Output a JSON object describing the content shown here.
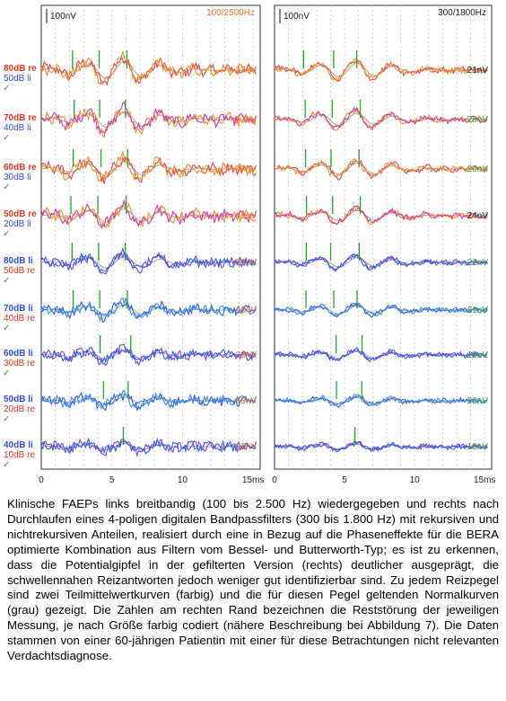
{
  "panels": [
    {
      "id": "left",
      "scale_label": "100nV",
      "filter_label": "100/2500Hz",
      "filter_color": "#e8722b",
      "x_ticks": [
        "0",
        "5",
        "10",
        "15ms"
      ],
      "rows": [
        {
          "re_label": "80dB re",
          "li_label": "50dB li",
          "stim": "re",
          "noise": "37nV",
          "noise_color": "#e8722b"
        },
        {
          "re_label": "70dB re",
          "li_label": "40dB li",
          "stim": "re",
          "noise": "57nV",
          "noise_color": "#e8722b"
        },
        {
          "re_label": "60dB re",
          "li_label": "30dB li",
          "stim": "re",
          "noise": "47nV",
          "noise_color": "#e8722b"
        },
        {
          "re_label": "50dB re",
          "li_label": "20dB li",
          "stim": "re",
          "noise": "41nV",
          "noise_color": "#e8722b"
        },
        {
          "re_label": "50dB re",
          "li_label": "80dB li",
          "stim": "li",
          "noise": "52nV",
          "noise_color": "#e8722b"
        },
        {
          "re_label": "40dB re",
          "li_label": "70dB li",
          "stim": "li",
          "noise": "43nV",
          "noise_color": "#e8722b"
        },
        {
          "re_label": "30dB re",
          "li_label": "60dB li",
          "stim": "li",
          "noise": "29nV",
          "noise_color": "#e8722b"
        },
        {
          "re_label": "20dB re",
          "li_label": "50dB li",
          "stim": "li",
          "noise": "43nV",
          "noise_color": "#e8722b"
        },
        {
          "re_label": "10dB re",
          "li_label": "40dB li",
          "stim": "li",
          "noise": "32nV",
          "noise_color": "#e8722b"
        }
      ]
    },
    {
      "id": "right",
      "scale_label": "100nV",
      "filter_label": "300/1800Hz",
      "filter_color": "#222222",
      "x_ticks": [
        "0",
        "5",
        "10",
        "15ms"
      ],
      "rows": [
        {
          "noise": "21nV",
          "noise_color": "#222222"
        },
        {
          "noise": "20nV",
          "noise_color": "#3aa33a"
        },
        {
          "noise": "20nV",
          "noise_color": "#3aa33a"
        },
        {
          "noise": "24nV",
          "noise_color": "#222222"
        },
        {
          "noise": "21nV",
          "noise_color": "#3aa33a"
        },
        {
          "noise": "21nV",
          "noise_color": "#3aa33a"
        },
        {
          "noise": "18nV",
          "noise_color": "#3aa33a"
        },
        {
          "noise": "20nV",
          "noise_color": "#3aa33a"
        },
        {
          "noise": "18nV",
          "noise_color": "#3aa33a"
        }
      ]
    }
  ],
  "colors": {
    "re_label": "#e03a1e",
    "li_label": "#2f52d6",
    "check_mark": "#33a033",
    "grid": "#c7c7c7",
    "normal_curve": "#a8a8a8",
    "peak_marker": "#27a327",
    "re_curves": [
      "#e8444a",
      "#e8922b",
      "#d43aa0"
    ],
    "li_curves": [
      "#7a46d8",
      "#2c5fe0",
      "#3b8fe3"
    ]
  },
  "chart_data": {
    "type": "line",
    "description_units": "x in ms (0–15), amplitude in nV",
    "xlim": [
      0,
      15
    ],
    "x_ticks": [
      "0",
      "5",
      "10",
      "15ms"
    ],
    "amplitude_scale": "100nV",
    "panels": [
      {
        "filter": "100/2500Hz",
        "noise_levels_nV": [
          37,
          57,
          47,
          41,
          52,
          43,
          29,
          43,
          32
        ],
        "stimulus_levels": [
          "80dB re / 50dB li",
          "70dB re / 40dB li",
          "60dB re / 30dB li",
          "50dB re / 20dB li",
          "80dB li / 50dB re",
          "70dB li / 40dB re",
          "60dB li / 30dB re",
          "50dB li / 20dB re",
          "40dB li / 10dB re"
        ]
      },
      {
        "filter": "300/1800Hz",
        "noise_levels_nV": [
          21,
          20,
          20,
          24,
          21,
          21,
          18,
          20,
          18
        ]
      }
    ]
  },
  "caption": "Klinische FAEPs links breitbandig (100 bis 2.500 Hz) wiedergegeben und rechts nach Durchlaufen eines 4-poligen digitalen Bandpassfilters (300 bis 1.800 Hz) mit rekursiven und nichtrekursiven Anteilen, realisiert durch eine in Bezug auf die Phaseneffekte für die BERA optimierte Kombination aus Filtern vom Bessel- und Butterworth-Typ; es ist zu erkennen, dass die Potentialgipfel in der gefilterten Version (rechts) deutlicher ausgeprägt, die schwellennahen Reizantworten jedoch weniger gut identifizierbar sind. Zu jedem Reizpegel sind zwei Teilmittelwertkurven (farbig) und die für diesen Pegel geltenden Normalkurven (grau) gezeigt. Die Zahlen am rechten Rand bezeichnen die Reststörung der jeweiligen Messung, je nach Größe farbig codiert (nähere Beschreibung bei Abbildung 7). Die Daten stammen von einer 60-jährigen Patientin mit einer für diese Betrachtungen nicht relevanten Verdachtsdiagnose."
}
